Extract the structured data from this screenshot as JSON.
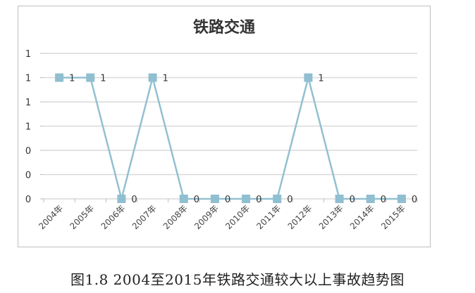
{
  "chart_data": {
    "type": "line",
    "title": "铁路交通",
    "categories": [
      "2004年",
      "2005年",
      "2006年",
      "2007年",
      "2008年",
      "2009年",
      "2010年",
      "2011年",
      "2012年",
      "2013年",
      "2014年",
      "2015年"
    ],
    "series": [
      {
        "values": [
          1,
          1,
          0,
          1,
          0,
          0,
          0,
          0,
          1,
          0,
          0,
          0
        ],
        "data_labels": [
          "1",
          "1",
          "0",
          "1",
          "0",
          "0",
          "0",
          "0",
          "1",
          "0",
          "0",
          "0"
        ]
      }
    ],
    "ylim": [
      0,
      1.2
    ],
    "yticks": [
      0,
      0.2,
      0.4,
      0.6,
      0.8,
      1.0,
      1.2
    ],
    "ytick_labels": [
      "0",
      "0",
      "0",
      "1",
      "1",
      "1",
      "1"
    ],
    "grid": true,
    "legend": "none",
    "colors": {
      "line": "#93c0d0",
      "marker": "#8fbfd0",
      "grid": "#d9d9d9"
    }
  },
  "caption": "图1.8 2004至2015年铁路交通较大以上事故趋势图"
}
